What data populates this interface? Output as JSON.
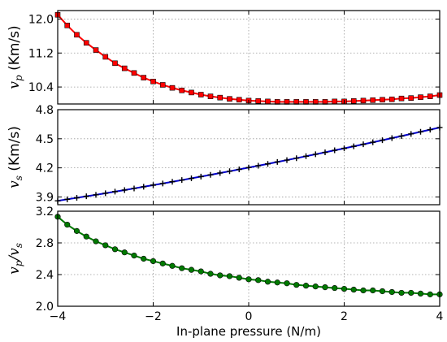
{
  "chart_data": [
    {
      "type": "line",
      "ylabel": {
        "main": "v",
        "sub": "p",
        "unit": "(Km/s)"
      },
      "xlim": [
        -4,
        4
      ],
      "ylim": [
        10.0,
        12.2
      ],
      "yticks": [
        "12.0",
        "11.2",
        "10.4"
      ],
      "ytick_values": [
        12.0,
        11.2,
        10.4
      ],
      "xticks": [
        -4,
        -2,
        0,
        2,
        4
      ],
      "grid": true,
      "series": [
        {
          "color": "#ff0000",
          "marker": "square",
          "x": [
            -4.0,
            -3.8,
            -3.6,
            -3.4,
            -3.2,
            -3.0,
            -2.8,
            -2.6,
            -2.4,
            -2.2,
            -2.0,
            -1.8,
            -1.6,
            -1.4,
            -1.2,
            -1.0,
            -0.8,
            -0.6,
            -0.4,
            -0.2,
            0.0,
            0.2,
            0.4,
            0.6,
            0.8,
            1.0,
            1.2,
            1.4,
            1.6,
            1.8,
            2.0,
            2.2,
            2.4,
            2.6,
            2.8,
            3.0,
            3.2,
            3.4,
            3.6,
            3.8,
            4.0
          ],
          "values": [
            12.1,
            11.85,
            11.63,
            11.44,
            11.27,
            11.11,
            10.96,
            10.84,
            10.73,
            10.62,
            10.53,
            10.45,
            10.38,
            10.32,
            10.27,
            10.22,
            10.18,
            10.15,
            10.12,
            10.1,
            10.08,
            10.07,
            10.06,
            10.05,
            10.05,
            10.05,
            10.05,
            10.05,
            10.05,
            10.06,
            10.06,
            10.07,
            10.08,
            10.09,
            10.1,
            10.11,
            10.13,
            10.14,
            10.16,
            10.18,
            10.21
          ]
        }
      ]
    },
    {
      "type": "line",
      "ylabel": {
        "main": "v",
        "sub": "s",
        "unit": "(Km/s)"
      },
      "xlim": [
        -4,
        4
      ],
      "ylim": [
        3.82,
        4.8
      ],
      "yticks": [
        "4.8",
        "4.5",
        "4.2",
        "3.9"
      ],
      "ytick_values": [
        4.8,
        4.5,
        4.2,
        3.9
      ],
      "xticks": [
        -4,
        -2,
        0,
        2,
        4
      ],
      "grid": true,
      "series": [
        {
          "color": "#0000cc",
          "marker": "plus",
          "x": [
            -4.0,
            -3.8,
            -3.6,
            -3.4,
            -3.2,
            -3.0,
            -2.8,
            -2.6,
            -2.4,
            -2.2,
            -2.0,
            -1.8,
            -1.6,
            -1.4,
            -1.2,
            -1.0,
            -0.8,
            -0.6,
            -0.4,
            -0.2,
            0.0,
            0.2,
            0.4,
            0.6,
            0.8,
            1.0,
            1.2,
            1.4,
            1.6,
            1.8,
            2.0,
            2.2,
            2.4,
            2.6,
            2.8,
            3.0,
            3.2,
            3.4,
            3.6,
            3.8,
            4.0
          ],
          "values": [
            3.86,
            3.876,
            3.891,
            3.907,
            3.922,
            3.938,
            3.955,
            3.971,
            3.988,
            4.005,
            4.022,
            4.039,
            4.057,
            4.074,
            4.092,
            4.11,
            4.128,
            4.147,
            4.165,
            4.184,
            4.203,
            4.222,
            4.241,
            4.261,
            4.28,
            4.3,
            4.32,
            4.34,
            4.36,
            4.381,
            4.401,
            4.422,
            4.443,
            4.464,
            4.485,
            4.507,
            4.528,
            4.55,
            4.572,
            4.594,
            4.616
          ]
        }
      ]
    },
    {
      "type": "line",
      "ylabel": {
        "main": "v",
        "sub": "p",
        "sep": "/",
        "main2": "v",
        "sub2": "s"
      },
      "xlim": [
        -4,
        4
      ],
      "ylim": [
        2.0,
        3.2
      ],
      "yticks": [
        "3.2",
        "2.8",
        "2.4",
        "2.0"
      ],
      "ytick_values": [
        3.2,
        2.8,
        2.4,
        2.0
      ],
      "xticks": [
        -4,
        -2,
        0,
        2,
        4
      ],
      "xticklabels": [
        "−4",
        "−2",
        "0",
        "2",
        "4"
      ],
      "xlabel": "In-plane pressure (N/m)",
      "grid": true,
      "series": [
        {
          "color": "#007a00",
          "marker": "circle",
          "x": [
            -4.0,
            -3.8,
            -3.6,
            -3.4,
            -3.2,
            -3.0,
            -2.8,
            -2.6,
            -2.4,
            -2.2,
            -2.0,
            -1.8,
            -1.6,
            -1.4,
            -1.2,
            -1.0,
            -0.8,
            -0.6,
            -0.4,
            -0.2,
            0.0,
            0.2,
            0.4,
            0.6,
            0.8,
            1.0,
            1.2,
            1.4,
            1.6,
            1.8,
            2.0,
            2.2,
            2.4,
            2.6,
            2.8,
            3.0,
            3.2,
            3.4,
            3.6,
            3.8,
            4.0
          ],
          "values": [
            3.13,
            3.03,
            2.95,
            2.88,
            2.82,
            2.77,
            2.72,
            2.68,
            2.64,
            2.6,
            2.57,
            2.54,
            2.51,
            2.48,
            2.46,
            2.44,
            2.41,
            2.39,
            2.38,
            2.36,
            2.34,
            2.33,
            2.31,
            2.3,
            2.29,
            2.27,
            2.26,
            2.25,
            2.24,
            2.23,
            2.22,
            2.21,
            2.2,
            2.2,
            2.19,
            2.18,
            2.17,
            2.17,
            2.16,
            2.15,
            2.15
          ]
        }
      ]
    }
  ]
}
